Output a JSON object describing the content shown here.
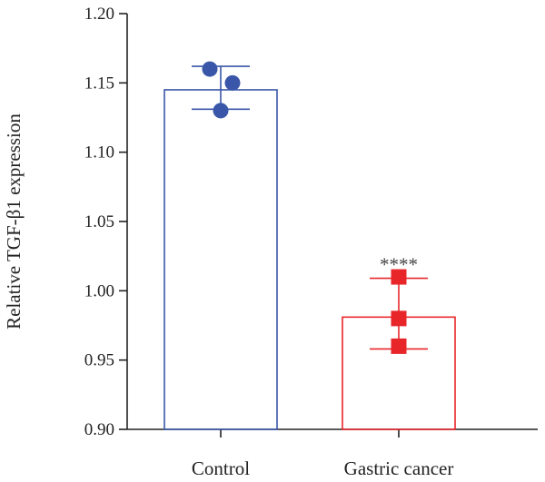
{
  "chart_data": {
    "type": "bar",
    "title": "",
    "xlabel": "",
    "ylabel": "Relative TGF-β1 expression",
    "ylim": [
      0.9,
      1.2
    ],
    "yticks": [
      0.9,
      0.95,
      1.0,
      1.05,
      1.1,
      1.15,
      1.2
    ],
    "ytick_labels": [
      "0.90",
      "0.95",
      "1.00",
      "1.05",
      "1.10",
      "1.15",
      "1.20"
    ],
    "categories": [
      "Control",
      "Gastric cancer"
    ],
    "values": [
      1.145,
      0.981
    ],
    "errors": [
      [
        1.131,
        1.162
      ],
      [
        0.958,
        1.009
      ]
    ],
    "points": [
      [
        1.16,
        1.15,
        1.13
      ],
      [
        1.01,
        0.98,
        0.96
      ]
    ],
    "marker_shapes": [
      "circle",
      "square"
    ],
    "colors": [
      "#3a56a8",
      "#e8262a"
    ],
    "annotations": [
      {
        "category": "Gastric cancer",
        "text": "****"
      }
    ],
    "grid": false,
    "legend": "none"
  }
}
